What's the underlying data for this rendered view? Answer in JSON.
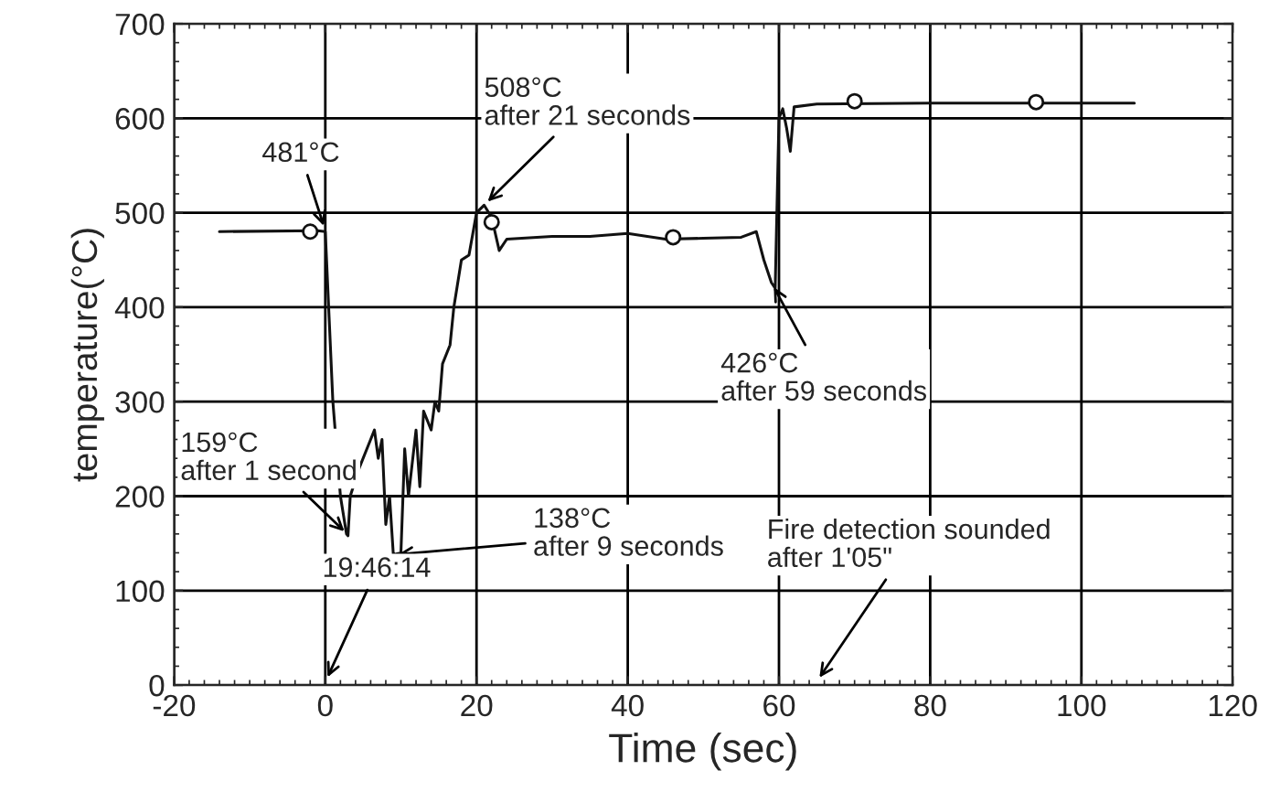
{
  "chart_data": {
    "type": "line",
    "xlabel": "Time (sec)",
    "ylabel": "temperature(°C)",
    "xlim": [
      -20,
      120
    ],
    "xticks": [
      -20,
      0,
      20,
      40,
      60,
      80,
      100,
      120
    ],
    "ylim": [
      0,
      700
    ],
    "yticks": [
      0,
      100,
      200,
      300,
      400,
      500,
      600,
      700
    ],
    "grid": true,
    "series": [
      {
        "color": "#111111",
        "x": [
          -14,
          -1,
          0,
          0.5,
          1,
          2,
          2.8,
          3,
          3.3,
          4.5,
          6,
          6.5,
          7,
          7.5,
          8,
          8.5,
          9,
          10,
          10.5,
          11,
          12,
          12.5,
          13,
          14,
          14.5,
          15,
          15.5,
          16.5,
          17,
          18,
          19,
          20,
          21,
          22,
          23,
          24,
          30,
          35,
          40,
          45,
          50,
          55,
          57,
          58,
          59,
          59.5,
          60,
          60.5,
          61,
          61.5,
          62,
          65,
          80,
          100,
          107
        ],
        "values": [
          480,
          481,
          480,
          390,
          300,
          200,
          160,
          158,
          200,
          230,
          260,
          270,
          240,
          260,
          170,
          200,
          138,
          140,
          250,
          200,
          270,
          210,
          290,
          270,
          300,
          290,
          340,
          360,
          400,
          450,
          455,
          500,
          508,
          495,
          460,
          472,
          475,
          475,
          478,
          472,
          473,
          474,
          480,
          450,
          426,
          420,
          600,
          610,
          590,
          565,
          612,
          615,
          616,
          616,
          616
        ]
      },
      {
        "type": "scatter",
        "marker": "circle",
        "color": "#111111",
        "x": [
          -2,
          22,
          46,
          70,
          94
        ],
        "values": [
          480,
          490,
          474,
          618,
          617
        ]
      }
    ],
    "annotations": [
      {
        "text": "481°C",
        "x": 0,
        "y": 481
      },
      {
        "text": "508°C\nafter 21 seconds",
        "x": 21,
        "y": 508
      },
      {
        "text": "426°C\nafter 59 seconds",
        "x": 59,
        "y": 426
      },
      {
        "text": "159°C\nafter 1 second",
        "x": 3,
        "y": 159
      },
      {
        "text": "138°C\nafter 9 seconds",
        "x": 9,
        "y": 138
      },
      "19:46:14",
      "Fire detection sounded\nafter 1'05\""
    ]
  }
}
